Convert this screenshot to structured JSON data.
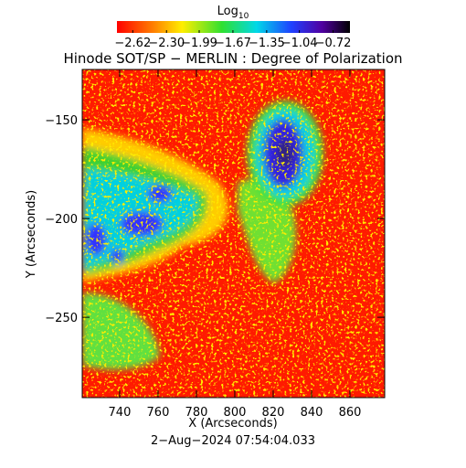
{
  "chart_data": {
    "type": "image",
    "title": "Hinode SOT/SP − MERLIN : Degree of Polarization",
    "x_label": "X (Arcseconds)",
    "y_label": "Y (Arcseconds)",
    "footer": "2−Aug−2024 07:54:04.033",
    "colorbar_title": "Log",
    "colorbar_title_subscript": "10",
    "colorbar_lim": [
      -2.77,
      -0.56
    ],
    "colorbar_ticks": [
      {
        "value": -2.62,
        "label": "−2.62"
      },
      {
        "value": -2.3,
        "label": "−2.30"
      },
      {
        "value": -1.99,
        "label": "−1.99"
      },
      {
        "value": -1.67,
        "label": "−1.67"
      },
      {
        "value": -1.35,
        "label": "−1.35"
      },
      {
        "value": -1.04,
        "label": "−1.04"
      },
      {
        "value": -0.72,
        "label": "−0.72"
      }
    ],
    "xlim": [
      720.5,
      878.1
    ],
    "xticks": [
      740,
      760,
      780,
      800,
      820,
      840,
      860
    ],
    "ylim": [
      -290.7,
      -124.5
    ],
    "yticks": [
      {
        "value": -150,
        "label": "−150"
      },
      {
        "value": -200,
        "label": "−200"
      },
      {
        "value": -250,
        "label": "−250"
      }
    ]
  }
}
